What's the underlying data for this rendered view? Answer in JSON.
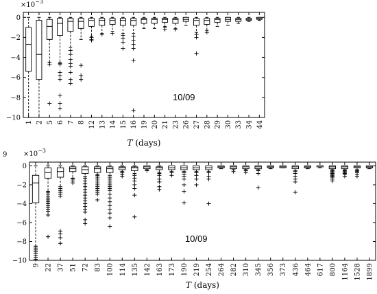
{
  "chart_data": [
    {
      "type": "box",
      "exponent_label": "×10",
      "exponent_power": "−3",
      "xlabel_var": "T",
      "xlabel_unit": " (days)",
      "annotation": "10/09",
      "ylim": [
        -0.01,
        0.0005
      ],
      "yticks": [
        0,
        -0.002,
        -0.004,
        -0.006,
        -0.008,
        -0.01
      ],
      "ytick_labels": [
        "0",
        "−2",
        "−4",
        "−6",
        "−8",
        "−10"
      ],
      "categories": [
        "1",
        "2",
        "5",
        "6",
        "7",
        "8",
        "12",
        "13",
        "14",
        "15",
        "16",
        "19",
        "20",
        "21",
        "23",
        "26",
        "27",
        "28",
        "29",
        "30",
        "33",
        "34",
        "44"
      ],
      "boxes": [
        {
          "q1": -0.0054,
          "med": -0.0027,
          "q3": -0.001,
          "wlo": -0.01,
          "whi": 0.0,
          "out": []
        },
        {
          "q1": -0.0062,
          "med": -0.0037,
          "q3": -0.0003,
          "wlo": -0.01,
          "whi": 0.0,
          "out": []
        },
        {
          "q1": -0.0022,
          "med": -0.0009,
          "q3": -0.0002,
          "wlo": -0.0045,
          "whi": 0.0,
          "out": [
            -0.0045,
            -0.0047,
            -0.0086
          ]
        },
        {
          "q1": -0.0018,
          "med": -0.0006,
          "q3": -0.0001,
          "wlo": -0.0045,
          "whi": 0.0,
          "out": [
            -0.0046,
            -0.0047,
            -0.0055,
            -0.0058,
            -0.0062,
            -0.0078,
            -0.0086,
            -0.0091
          ]
        },
        {
          "q1": -0.0014,
          "med": -0.0004,
          "q3": -0.0001,
          "wlo": -0.003,
          "whi": 0.0,
          "out": [
            -0.0033,
            -0.0037,
            -0.0042,
            -0.0046,
            -0.0049,
            -0.0055,
            -0.0062,
            -0.0066
          ]
        },
        {
          "q1": -0.0011,
          "med": -0.0004,
          "q3": -0.0001,
          "wlo": -0.0022,
          "whi": 0.0,
          "out": [
            -0.0048,
            -0.0058,
            -0.0062
          ]
        },
        {
          "q1": -0.0009,
          "med": -0.0003,
          "q3": -0.0001,
          "wlo": -0.0019,
          "whi": 0.0,
          "out": [
            -0.002,
            -0.0022,
            -0.0023
          ]
        },
        {
          "q1": -0.0008,
          "med": -0.0003,
          "q3": -0.0001,
          "wlo": -0.0016,
          "whi": 0.0,
          "out": [
            -0.0017
          ]
        },
        {
          "q1": -0.0007,
          "med": -0.0003,
          "q3": -0.0001,
          "wlo": -0.0014,
          "whi": 0.0,
          "out": [
            -0.0016
          ]
        },
        {
          "q1": -0.0008,
          "med": -0.0003,
          "q3": -0.0001,
          "wlo": -0.0016,
          "whi": 0.0,
          "out": [
            -0.0018,
            -0.0021,
            -0.0025,
            -0.0031
          ]
        },
        {
          "q1": -0.0008,
          "med": -0.0003,
          "q3": -0.0001,
          "wlo": -0.0016,
          "whi": 0.0,
          "out": [
            -0.0019,
            -0.0023,
            -0.0027,
            -0.0031,
            -0.0043,
            -0.0093
          ]
        },
        {
          "q1": -0.0006,
          "med": -0.0002,
          "q3": -0.0001,
          "wlo": -0.0011,
          "whi": 0.0,
          "out": []
        },
        {
          "q1": -0.0006,
          "med": -0.0002,
          "q3": -0.0001,
          "wlo": -0.0011,
          "whi": 0.0,
          "out": []
        },
        {
          "q1": -0.0005,
          "med": -0.0002,
          "q3": -0.0001,
          "wlo": -0.0009,
          "whi": 0.0,
          "out": [
            -0.001,
            -0.0012
          ]
        },
        {
          "q1": -0.0006,
          "med": -0.0002,
          "q3": -0.0001,
          "wlo": -0.0011,
          "whi": 0.0,
          "out": [
            -0.0012
          ]
        },
        {
          "q1": -0.0004,
          "med": -0.0002,
          "q3": -0.0,
          "wlo": -0.0008,
          "whi": 0.0,
          "out": []
        },
        {
          "q1": -0.0008,
          "med": -0.0003,
          "q3": -0.0001,
          "wlo": -0.0015,
          "whi": 0.0,
          "out": [
            -0.0017,
            -0.002,
            -0.0036
          ]
        },
        {
          "q1": -0.0007,
          "med": -0.0003,
          "q3": -0.0001,
          "wlo": -0.0013,
          "whi": 0.0,
          "out": [
            -0.0015
          ]
        },
        {
          "q1": -0.0005,
          "med": -0.0002,
          "q3": -0.0001,
          "wlo": -0.0009,
          "whi": 0.0,
          "out": []
        },
        {
          "q1": -0.0004,
          "med": -0.0002,
          "q3": -0.0,
          "wlo": -0.0008,
          "whi": 0.0,
          "out": []
        },
        {
          "q1": -0.0004,
          "med": -0.0002,
          "q3": -0.0001,
          "wlo": -0.0006,
          "whi": 0.0,
          "out": []
        },
        {
          "q1": -0.0003,
          "med": -0.0002,
          "q3": -0.0001,
          "wlo": -0.0004,
          "whi": 0.0,
          "out": []
        },
        {
          "q1": -0.0002,
          "med": -0.0001,
          "q3": -0.0,
          "wlo": -0.0003,
          "whi": 0.0,
          "out": []
        }
      ]
    },
    {
      "type": "box",
      "exponent_label": "×10",
      "exponent_power": "−3",
      "xlabel_var": "T",
      "xlabel_unit": " (days)",
      "annotation": "10/09",
      "ylim": [
        -0.01,
        0.0004
      ],
      "yticks": [
        0,
        -0.002,
        -0.004,
        -0.006,
        -0.008,
        -0.01
      ],
      "ytick_labels": [
        "0",
        "−2",
        "−4",
        "−6",
        "−8",
        "−10"
      ],
      "top_tick_label": "9",
      "categories": [
        "9",
        "22",
        "37",
        "51",
        "72",
        "83",
        "100",
        "114",
        "135",
        "142",
        "163",
        "173",
        "190",
        "219",
        "254",
        "264",
        "282",
        "310",
        "345",
        "356",
        "373",
        "436",
        "464",
        "617",
        "800",
        "1164",
        "1528",
        "1899"
      ],
      "boxes": [
        {
          "q1": -0.0039,
          "med": -0.0018,
          "q3": -0.001,
          "wlo": -0.0085,
          "whi": 0.0,
          "out": [
            -0.0085,
            -0.0087,
            -0.0089,
            -0.0091,
            -0.0093,
            -0.0095,
            -0.0097,
            -0.0099
          ]
        },
        {
          "q1": -0.0013,
          "med": -0.0007,
          "q3": -0.0002,
          "wlo": -0.0027,
          "whi": 0.0,
          "out": [
            -0.0028,
            -0.003,
            -0.0032,
            -0.0034,
            -0.0036,
            -0.0038,
            -0.004,
            -0.0042,
            -0.0044,
            -0.0046,
            -0.0048,
            -0.0052,
            -0.0075
          ]
        },
        {
          "q1": -0.0012,
          "med": -0.0006,
          "q3": -0.0002,
          "wlo": -0.0022,
          "whi": 0.0,
          "out": [
            -0.0024,
            -0.0026,
            -0.0028,
            -0.003,
            -0.0032,
            -0.0069,
            -0.0072,
            -0.0076,
            -0.0082
          ]
        },
        {
          "q1": -0.0006,
          "med": -0.0003,
          "q3": -0.0001,
          "wlo": -0.0013,
          "whi": 0.0,
          "out": [
            -0.0014,
            -0.0016,
            -0.0018
          ]
        },
        {
          "q1": -0.0008,
          "med": -0.0004,
          "q3": -0.0001,
          "wlo": -0.0011,
          "whi": 0.0,
          "out": [
            -0.0013,
            -0.0016,
            -0.0019,
            -0.0022,
            -0.0025,
            -0.0028,
            -0.0031,
            -0.0034,
            -0.0037,
            -0.004,
            -0.0043,
            -0.0046,
            -0.0049,
            -0.0057,
            -0.0061
          ]
        },
        {
          "q1": -0.0007,
          "med": -0.0003,
          "q3": -0.0001,
          "wlo": -0.0009,
          "whi": 0.0,
          "out": [
            -0.001,
            -0.0012,
            -0.0014,
            -0.0016,
            -0.0018,
            -0.002,
            -0.0022,
            -0.0024,
            -0.0026,
            -0.0028,
            -0.003,
            -0.0036
          ]
        },
        {
          "q1": -0.0007,
          "med": -0.0003,
          "q3": -0.0001,
          "wlo": -0.001,
          "whi": 0.0,
          "out": [
            -0.0012,
            -0.0014,
            -0.0016,
            -0.0018,
            -0.002,
            -0.0022,
            -0.0024,
            -0.0026,
            -0.003,
            -0.0034,
            -0.0038,
            -0.0042,
            -0.0046,
            -0.005,
            -0.0055,
            -0.0064
          ]
        },
        {
          "q1": -0.0004,
          "med": -0.0002,
          "q3": -0.0001,
          "wlo": -0.0006,
          "whi": 0.0,
          "out": [
            -0.0007,
            -0.0009,
            -0.0011
          ]
        },
        {
          "q1": -0.0005,
          "med": -0.0002,
          "q3": -0.0001,
          "wlo": -0.0008,
          "whi": 0.0,
          "out": [
            -0.001,
            -0.0013,
            -0.0016,
            -0.002,
            -0.0024,
            -0.0031,
            -0.0054
          ]
        },
        {
          "q1": -0.0003,
          "med": -0.0001,
          "q3": -0.0,
          "wlo": -0.0004,
          "whi": 0.0,
          "out": [
            -0.0005
          ]
        },
        {
          "q1": -0.0004,
          "med": -0.0002,
          "q3": -0.0001,
          "wlo": -0.0007,
          "whi": 0.0,
          "out": [
            -0.0008,
            -0.001,
            -0.0014,
            -0.0017,
            -0.0022,
            -0.0025
          ]
        },
        {
          "q1": -0.0004,
          "med": -0.0002,
          "q3": -0.0,
          "wlo": -0.0006,
          "whi": 0.0,
          "out": [
            -0.0007,
            -0.001
          ]
        },
        {
          "q1": -0.0004,
          "med": -0.0002,
          "q3": -0.0,
          "wlo": -0.0006,
          "whi": 0.0,
          "out": [
            -0.0007,
            -0.0009,
            -0.0011,
            -0.0014,
            -0.002,
            -0.0027,
            -0.0039
          ]
        },
        {
          "q1": -0.0004,
          "med": -0.0002,
          "q3": -0.0,
          "wlo": -0.0006,
          "whi": 0.0,
          "out": [
            -0.0007,
            -0.001,
            -0.0014,
            -0.002
          ]
        },
        {
          "q1": -0.0004,
          "med": -0.0002,
          "q3": -0.0,
          "wlo": -0.0006,
          "whi": 0.0,
          "out": [
            -0.0007,
            -0.0011,
            -0.0014,
            -0.004
          ]
        },
        {
          "q1": -0.0002,
          "med": -0.0001,
          "q3": -0.0,
          "wlo": -0.0003,
          "whi": 0.0,
          "out": []
        },
        {
          "q1": -0.0003,
          "med": -0.0001,
          "q3": -0.0,
          "wlo": -0.0004,
          "whi": 0.0,
          "out": [
            -0.0006
          ]
        },
        {
          "q1": -0.0003,
          "med": -0.0001,
          "q3": -0.0,
          "wlo": -0.0004,
          "whi": 0.0,
          "out": [
            -0.0005,
            -0.0007
          ]
        },
        {
          "q1": -0.0003,
          "med": -0.0001,
          "q3": -0.0,
          "wlo": -0.0004,
          "whi": 0.0,
          "out": [
            -0.0005,
            -0.0008,
            -0.0023
          ]
        },
        {
          "q1": -0.0002,
          "med": -0.0001,
          "q3": -0.0,
          "wlo": -0.0003,
          "whi": 0.0,
          "out": []
        },
        {
          "q1": -0.0002,
          "med": -0.0001,
          "q3": -0.0,
          "wlo": -0.0002,
          "whi": 0.0,
          "out": []
        },
        {
          "q1": -0.0003,
          "med": -0.0001,
          "q3": -0.0,
          "wlo": -0.0005,
          "whi": 0.0,
          "out": [
            -0.0006,
            -0.0008,
            -0.0011,
            -0.0014,
            -0.0017,
            -0.0028
          ]
        },
        {
          "q1": -0.0002,
          "med": -0.0001,
          "q3": -0.0,
          "wlo": -0.0003,
          "whi": 0.0,
          "out": []
        },
        {
          "q1": -0.0001,
          "med": -0.0,
          "q3": -0.0,
          "wlo": -0.0002,
          "whi": 0.0,
          "out": []
        },
        {
          "q1": -0.0003,
          "med": -0.0001,
          "q3": -0.0,
          "wlo": -0.0004,
          "whi": 0.0,
          "out": [
            -0.0005,
            -0.0006,
            -0.0007,
            -0.0008,
            -0.0009,
            -0.001,
            -0.0011,
            -0.0012,
            -0.0014,
            -0.0016
          ]
        },
        {
          "q1": -0.0003,
          "med": -0.0001,
          "q3": -0.0,
          "wlo": -0.0004,
          "whi": 0.0,
          "out": [
            -0.0005,
            -0.0006,
            -0.0007,
            -0.0008,
            -0.0009,
            -0.0011
          ]
        },
        {
          "q1": -0.0002,
          "med": -0.0001,
          "q3": -0.0,
          "wlo": -0.0004,
          "whi": 0.0,
          "out": [
            -0.0005,
            -0.0006,
            -0.0007,
            -0.0009,
            -0.0011
          ]
        },
        {
          "q1": -0.0002,
          "med": -0.0001,
          "q3": -0.0,
          "wlo": -0.0003,
          "whi": 0.0,
          "out": []
        }
      ]
    }
  ]
}
